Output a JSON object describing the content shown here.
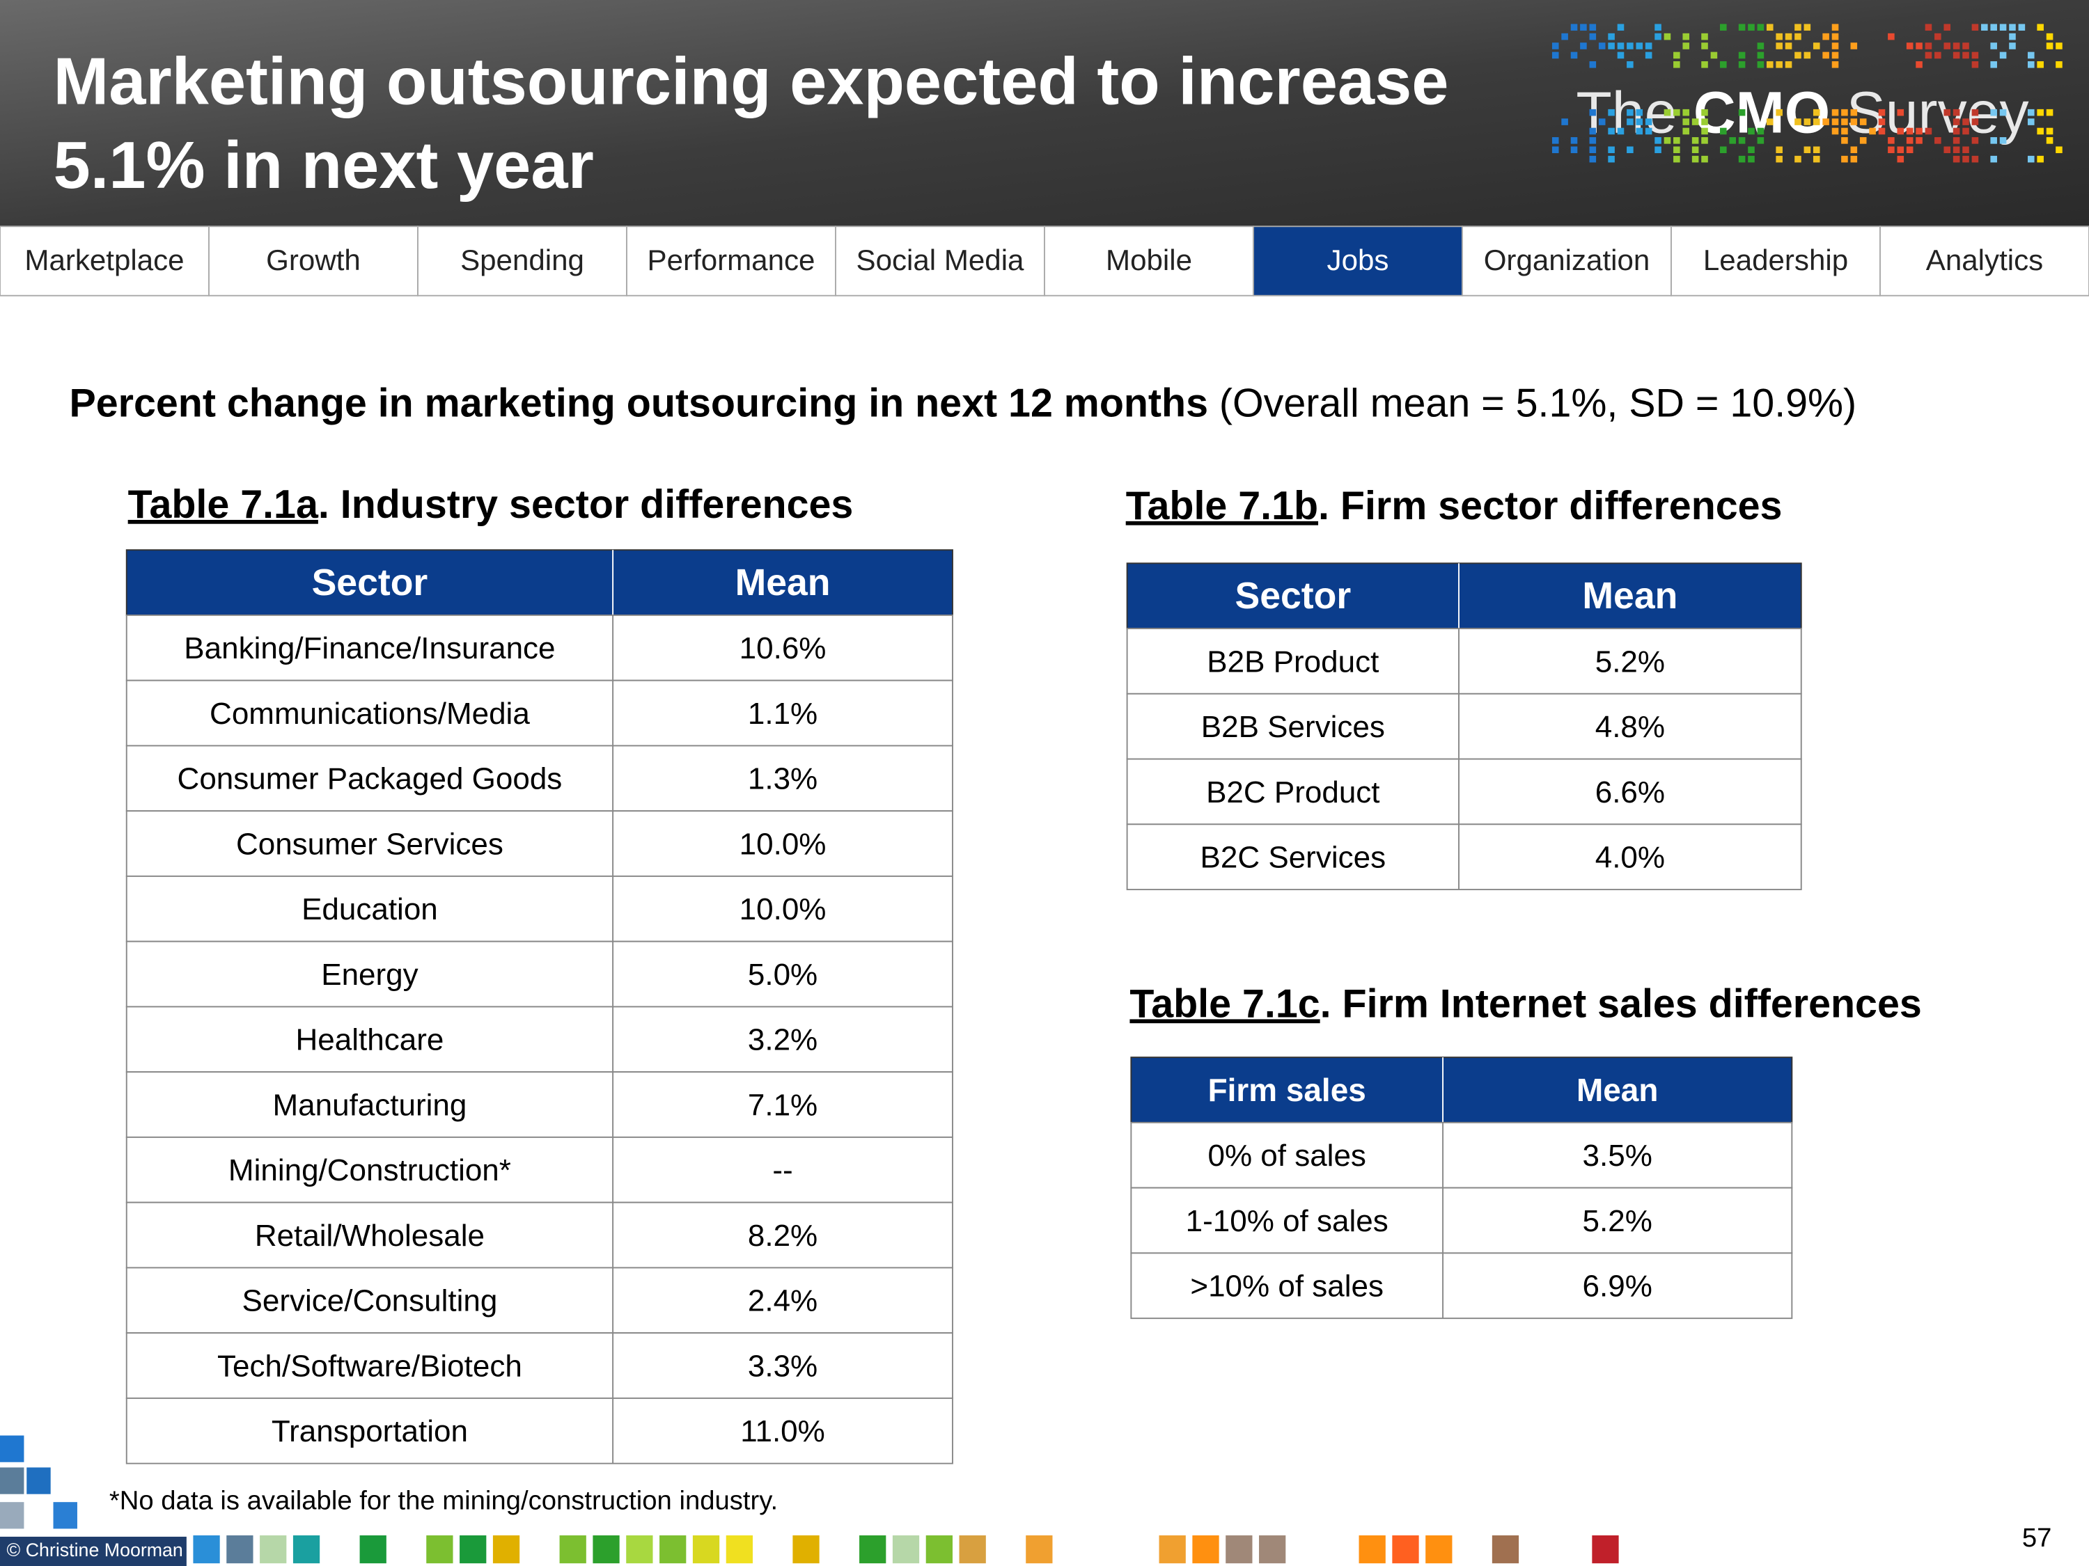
{
  "header": {
    "title_lines": [
      "Marketing outsourcing expected to increase",
      "5.1% in next year"
    ],
    "logo": {
      "pre": "The",
      "bold": "CMO",
      "post": "Survey"
    }
  },
  "nav": {
    "items": [
      "Marketplace",
      "Growth",
      "Spending",
      "Performance",
      "Social Media",
      "Mobile",
      "Jobs",
      "Organization",
      "Leadership",
      "Analytics"
    ],
    "active": "Jobs"
  },
  "subtitle": {
    "bold": "Percent change in marketing outsourcing in next 12 months",
    "normal": "(Overall mean = 5.1%, SD = 10.9%)"
  },
  "tables": [
    {
      "label": "Table 7.1a",
      "title": ". Industry sector differences",
      "columns": [
        "Sector",
        "Mean"
      ],
      "rows": [
        [
          "Banking/Finance/Insurance",
          "10.6%"
        ],
        [
          "Communications/Media",
          "1.1%"
        ],
        [
          "Consumer Packaged Goods",
          "1.3%"
        ],
        [
          "Consumer Services",
          "10.0%"
        ],
        [
          "Education",
          "10.0%"
        ],
        [
          "Energy",
          "5.0%"
        ],
        [
          "Healthcare",
          "3.2%"
        ],
        [
          "Manufacturing",
          "7.1%"
        ],
        [
          "Mining/Construction*",
          "--"
        ],
        [
          "Retail/Wholesale",
          "8.2%"
        ],
        [
          "Service/Consulting",
          "2.4%"
        ],
        [
          "Tech/Software/Biotech",
          "3.3%"
        ],
        [
          "Transportation",
          "11.0%"
        ]
      ]
    },
    {
      "label": "Table 7.1b",
      "title": ". Firm sector differences",
      "columns": [
        "Sector",
        "Mean"
      ],
      "rows": [
        [
          "B2B Product",
          "5.2%"
        ],
        [
          "B2B Services",
          "4.8%"
        ],
        [
          "B2C Product",
          "6.6%"
        ],
        [
          "B2C Services",
          "4.0%"
        ]
      ]
    },
    {
      "label": "Table 7.1c",
      "title": ". Firm Internet sales differences",
      "columns": [
        "Firm sales",
        "Mean"
      ],
      "rows": [
        [
          "0% of sales",
          "3.5%"
        ],
        [
          "1-10% of sales",
          "5.2%"
        ],
        [
          ">10% of sales",
          "6.9%"
        ]
      ]
    }
  ],
  "footnote": "*No data is available for the mining/construction industry.",
  "copyright": "© Christine Moorman",
  "page_number": "57"
}
